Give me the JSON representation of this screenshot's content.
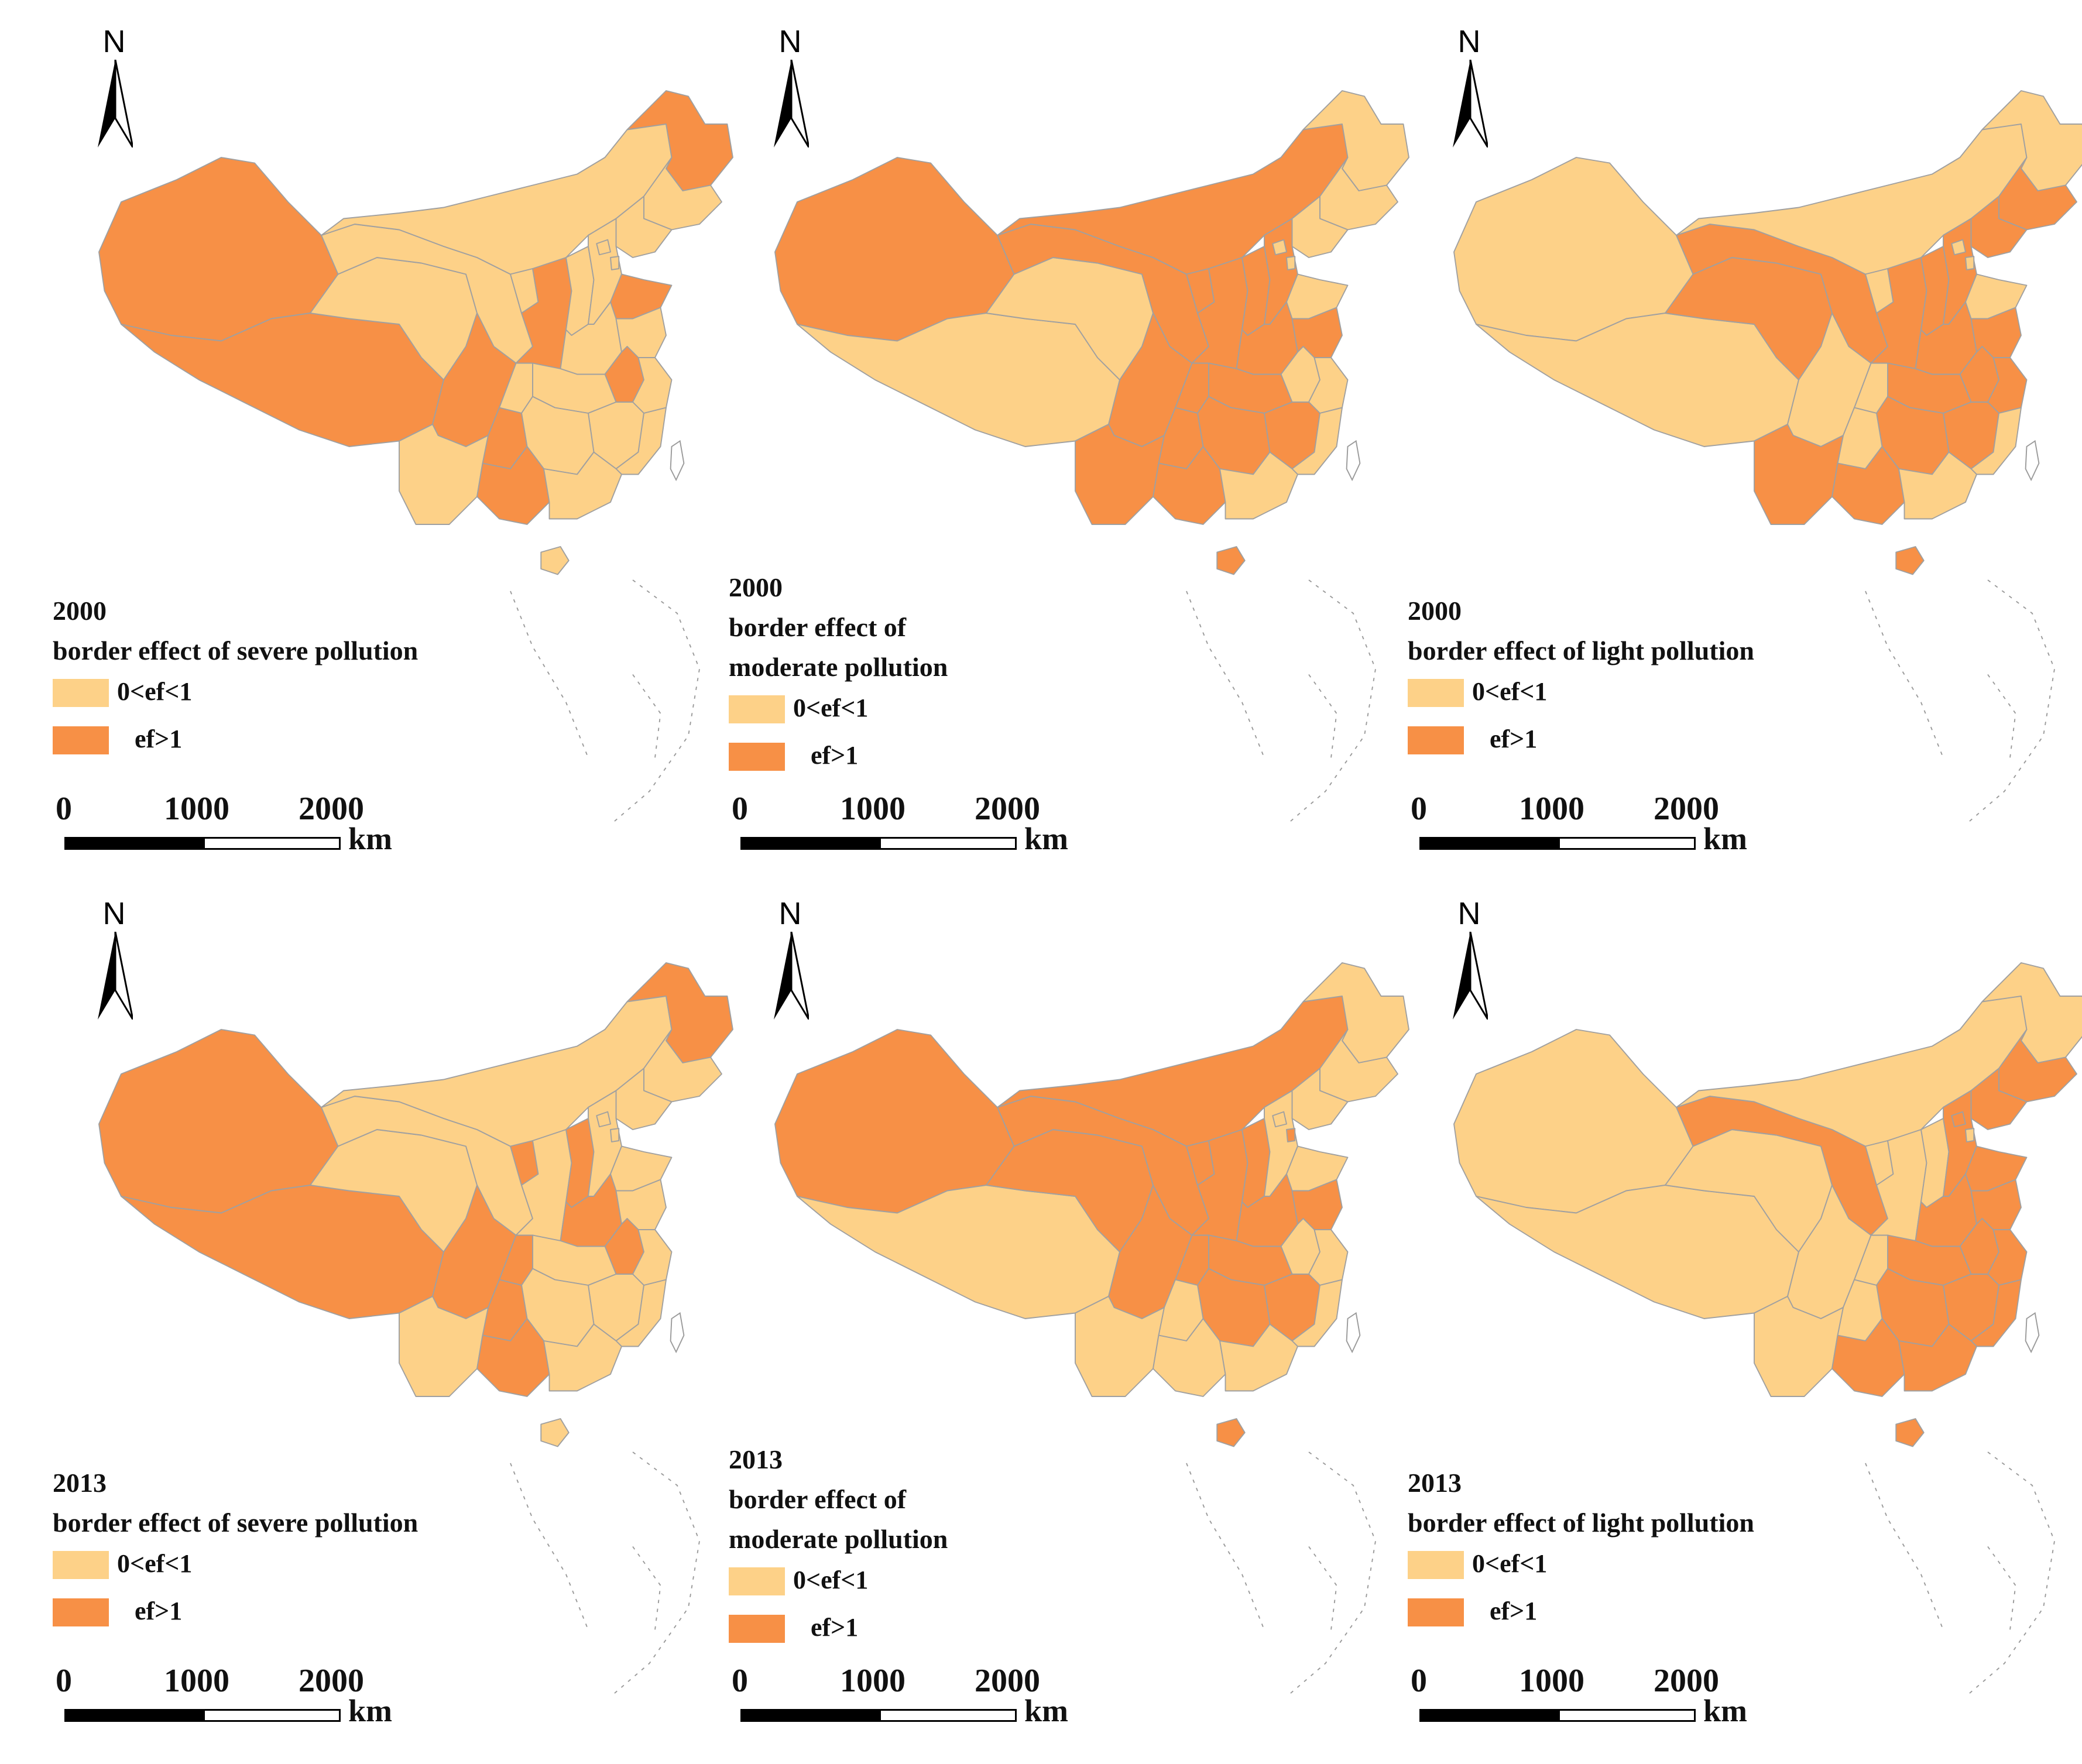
{
  "colors": {
    "low": "#fdd188",
    "high": "#f79046",
    "border": "#a0a0a0",
    "islands": "#9a9a9a"
  },
  "north": "N",
  "legend": {
    "low_label": "0<ef<1",
    "high_label": "ef>1"
  },
  "scalebar": {
    "ticks": [
      "0",
      "1000",
      "2000"
    ],
    "unit": "km"
  },
  "panels": [
    {
      "year": "2000",
      "title": "border effect of severe pollution",
      "high_regions": [
        "xinjiang",
        "tibet",
        "sichuan",
        "guizhou",
        "guangxi",
        "shaanxi",
        "shandong",
        "anhui",
        "heilongjiang"
      ]
    },
    {
      "year": "2000",
      "title_line1": "border effect of",
      "title_line2": "moderate pollution",
      "high_regions": [
        "xinjiang",
        "innermongolia",
        "gansu",
        "ningxia",
        "shaanxi",
        "shanxi",
        "henan",
        "hubei",
        "sichuan",
        "chongqing",
        "yunnan",
        "guizhou",
        "hunan",
        "jiangxi",
        "guangxi",
        "hainan",
        "hebei",
        "jiangsu"
      ]
    },
    {
      "year": "2000",
      "title": "border effect of light pollution",
      "high_regions": [
        "qinghai",
        "gansu",
        "shaanxi",
        "shanxi",
        "hebei",
        "liaoning",
        "jilin",
        "henan",
        "hubei",
        "anhui",
        "jiangsu",
        "zhejiang",
        "yunnan",
        "guangxi",
        "hunan",
        "jiangxi",
        "hainan"
      ]
    },
    {
      "year": "2013",
      "title": "border effect of severe pollution",
      "high_regions": [
        "xinjiang",
        "tibet",
        "sichuan",
        "chongqing",
        "guizhou",
        "guangxi",
        "shanxi",
        "henan",
        "anhui",
        "ningxia",
        "heilongjiang"
      ]
    },
    {
      "year": "2013",
      "title_line1": "border effect of",
      "title_line2": "moderate pollution",
      "high_regions": [
        "xinjiang",
        "innermongolia",
        "gansu",
        "ningxia",
        "qinghai",
        "shaanxi",
        "shanxi",
        "henan",
        "hubei",
        "sichuan",
        "chongqing",
        "hunan",
        "jiangxi",
        "jiangsu",
        "hainan",
        "tianjin"
      ]
    },
    {
      "year": "2013",
      "title": "border effect of light pollution",
      "high_regions": [
        "gansu",
        "liaoning",
        "jilin",
        "hebei",
        "beijing",
        "shandong",
        "henan",
        "hubei",
        "anhui",
        "jiangsu",
        "zhejiang",
        "hunan",
        "jiangxi",
        "guangxi",
        "guangdong",
        "fujian",
        "hainan"
      ]
    }
  ]
}
